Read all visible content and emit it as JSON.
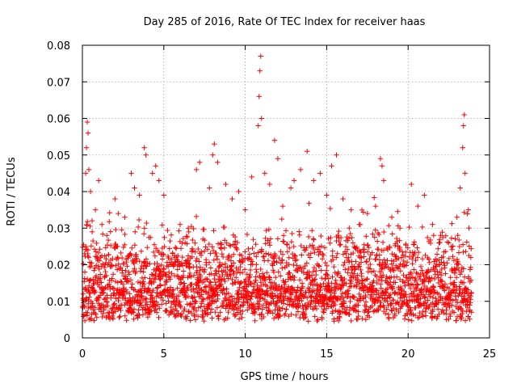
{
  "chart_data": {
    "type": "scatter",
    "title": "Day 285 of 2016, Rate Of TEC Index for receiver haas",
    "xlabel": "GPS time / hours",
    "ylabel": "ROTI / TECUs",
    "xlim": [
      0,
      25
    ],
    "ylim": [
      0,
      0.08
    ],
    "grid": true,
    "marker": "+",
    "color": "#ff0000",
    "x_ticks": [
      0,
      5,
      10,
      15,
      20,
      25
    ],
    "x_tick_labels": [
      "0",
      "5",
      "10",
      "15",
      "20",
      "25"
    ],
    "y_ticks": [
      0,
      0.01,
      0.02,
      0.03,
      0.04,
      0.05,
      0.06,
      0.07,
      0.08
    ],
    "y_tick_labels": [
      "0",
      "0.01",
      "0.02",
      "0.03",
      "0.04",
      "0.05",
      "0.06",
      "0.07",
      "0.08"
    ],
    "data_extent_hours": [
      0,
      23.9
    ],
    "series": [
      {
        "name": "ROTI",
        "points": [
          [
            0.05,
            0.012
          ],
          [
            0.15,
            0.018
          ],
          [
            0.2,
            0.045
          ],
          [
            0.25,
            0.052
          ],
          [
            0.3,
            0.059
          ],
          [
            0.35,
            0.056
          ],
          [
            0.4,
            0.046
          ],
          [
            0.5,
            0.04
          ],
          [
            0.6,
            0.029
          ],
          [
            0.8,
            0.035
          ],
          [
            1.0,
            0.043
          ],
          [
            1.2,
            0.031
          ],
          [
            1.5,
            0.028
          ],
          [
            2.0,
            0.038
          ],
          [
            2.2,
            0.034
          ],
          [
            2.6,
            0.033
          ],
          [
            3.0,
            0.045
          ],
          [
            3.2,
            0.041
          ],
          [
            3.5,
            0.039
          ],
          [
            3.8,
            0.052
          ],
          [
            3.9,
            0.05
          ],
          [
            4.3,
            0.045
          ],
          [
            4.5,
            0.047
          ],
          [
            4.7,
            0.043
          ],
          [
            5.0,
            0.039
          ],
          [
            5.4,
            0.02
          ],
          [
            6.0,
            0.031
          ],
          [
            6.5,
            0.03
          ],
          [
            7.0,
            0.046
          ],
          [
            7.2,
            0.048
          ],
          [
            7.8,
            0.041
          ],
          [
            8.0,
            0.05
          ],
          [
            8.1,
            0.053
          ],
          [
            8.3,
            0.048
          ],
          [
            8.8,
            0.042
          ],
          [
            9.2,
            0.038
          ],
          [
            9.6,
            0.04
          ],
          [
            10.0,
            0.035
          ],
          [
            10.4,
            0.044
          ],
          [
            10.8,
            0.058
          ],
          [
            10.85,
            0.066
          ],
          [
            10.9,
            0.073
          ],
          [
            10.95,
            0.077
          ],
          [
            11.0,
            0.06
          ],
          [
            11.2,
            0.045
          ],
          [
            11.5,
            0.042
          ],
          [
            11.8,
            0.054
          ],
          [
            12.0,
            0.049
          ],
          [
            12.3,
            0.036
          ],
          [
            12.8,
            0.041
          ],
          [
            13.0,
            0.043
          ],
          [
            13.4,
            0.046
          ],
          [
            13.8,
            0.051
          ],
          [
            14.2,
            0.043
          ],
          [
            14.6,
            0.045
          ],
          [
            15.0,
            0.039
          ],
          [
            15.3,
            0.047
          ],
          [
            15.6,
            0.05
          ],
          [
            16.0,
            0.038
          ],
          [
            16.5,
            0.035
          ],
          [
            17.0,
            0.031
          ],
          [
            17.5,
            0.034
          ],
          [
            18.0,
            0.036
          ],
          [
            18.3,
            0.049
          ],
          [
            18.4,
            0.047
          ],
          [
            18.5,
            0.043
          ],
          [
            19.0,
            0.033
          ],
          [
            19.5,
            0.03
          ],
          [
            20.2,
            0.042
          ],
          [
            20.6,
            0.036
          ],
          [
            21.0,
            0.039
          ],
          [
            21.5,
            0.031
          ],
          [
            22.0,
            0.028
          ],
          [
            22.5,
            0.026
          ],
          [
            23.0,
            0.033
          ],
          [
            23.2,
            0.041
          ],
          [
            23.35,
            0.052
          ],
          [
            23.4,
            0.058
          ],
          [
            23.45,
            0.061
          ],
          [
            23.5,
            0.045
          ],
          [
            23.7,
            0.035
          ],
          [
            23.85,
            0.022
          ]
        ]
      }
    ]
  }
}
